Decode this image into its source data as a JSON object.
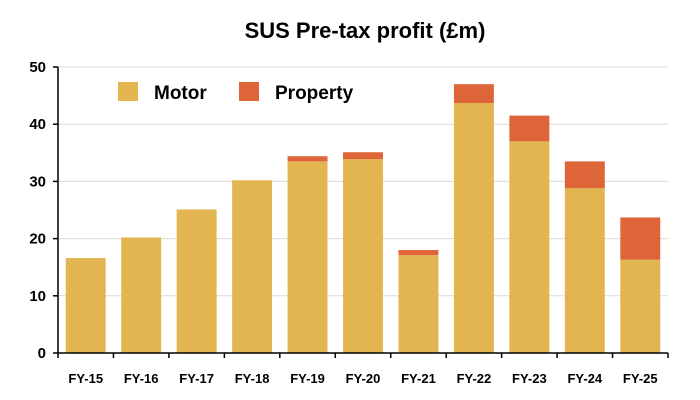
{
  "chart_data": {
    "type": "bar",
    "stacked": true,
    "title": "SUS Pre-tax profit (£m)",
    "xlabel": "",
    "ylabel": "",
    "categories": [
      "FY-15",
      "FY-16",
      "FY-17",
      "FY-18",
      "FY-19",
      "FY-20",
      "FY-21",
      "FY-22",
      "FY-23",
      "FY-24",
      "FY-25"
    ],
    "series": [
      {
        "name": "Motor",
        "color": "#E3B550",
        "values": [
          16.6,
          20.2,
          25.1,
          30.2,
          33.5,
          33.9,
          17.1,
          43.7,
          37.0,
          28.8,
          16.3
        ]
      },
      {
        "name": "Property",
        "color": "#DE6538",
        "values": [
          0,
          0,
          0,
          0,
          0.9,
          1.2,
          0.9,
          3.3,
          4.5,
          4.7,
          7.4
        ]
      }
    ],
    "ylim": [
      0,
      50
    ],
    "yticks": [
      0,
      10,
      20,
      30,
      40,
      50
    ],
    "grid": true,
    "legend_position": "top-left"
  }
}
